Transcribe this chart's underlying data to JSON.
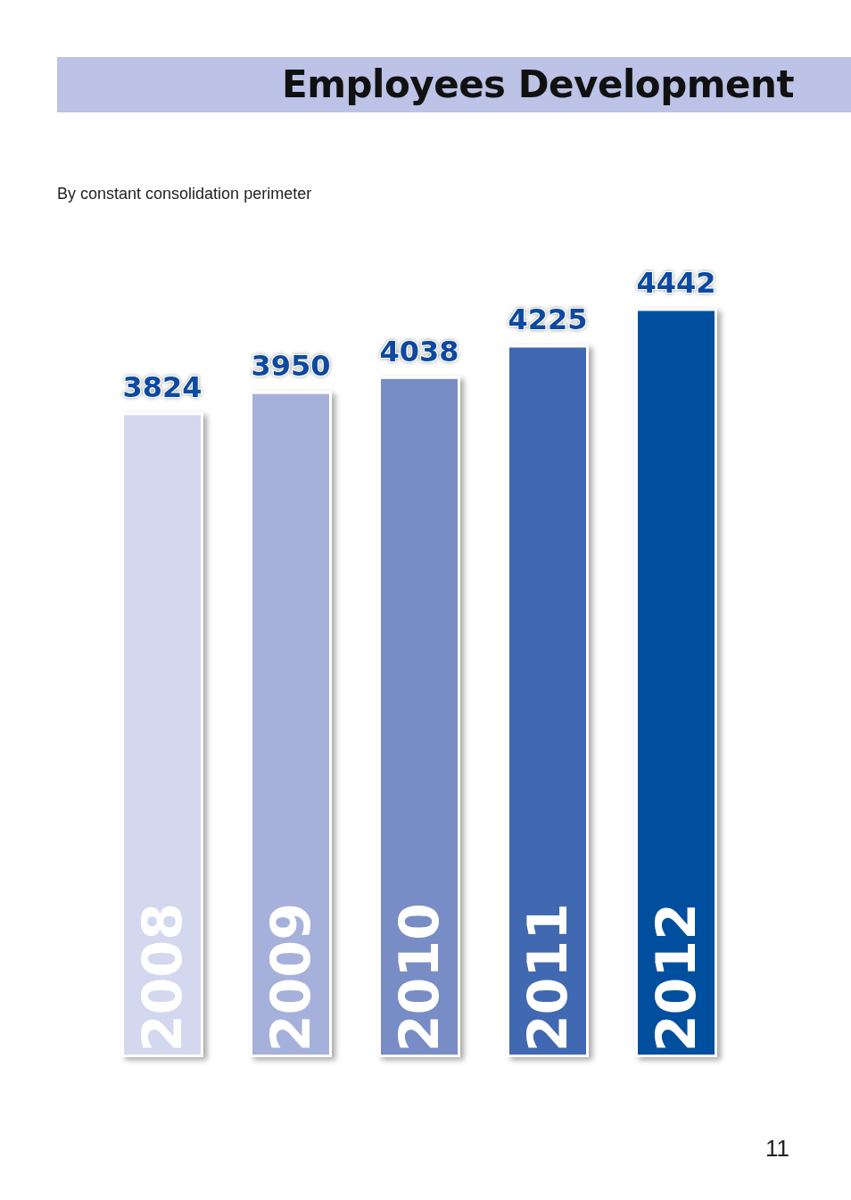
{
  "chart_data": {
    "type": "bar",
    "title": "Employees Development",
    "subtitle": "By constant consolidation perimeter",
    "categories": [
      "2008",
      "2009",
      "2010",
      "2011",
      "2012"
    ],
    "values": [
      3824,
      3950,
      4038,
      4225,
      4442
    ],
    "colors": [
      "#d3d8ee",
      "#a6b1db",
      "#788cc6",
      "#4069b1",
      "#004f9f"
    ],
    "data_labels": true,
    "tick_labels": "x",
    "annotations": [
      "11"
    ]
  }
}
